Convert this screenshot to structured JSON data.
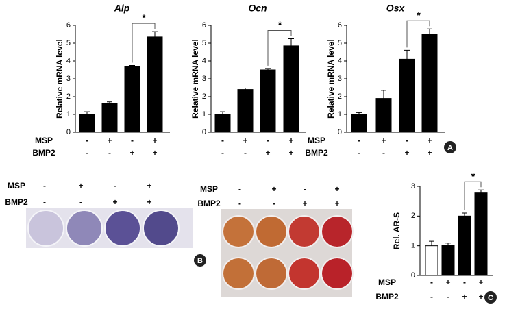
{
  "chart_data": [
    {
      "type": "bar",
      "title": "Alp",
      "y_label": "Relative mRNA level",
      "ylim": [
        0,
        6
      ],
      "yticks": [
        0,
        1,
        2,
        3,
        4,
        5,
        6
      ],
      "series": [
        {
          "name": null,
          "colors": [
            "#000000",
            "#000000",
            "#000000",
            "#000000"
          ],
          "values": [
            1.0,
            1.6,
            3.7,
            5.35
          ],
          "errors": [
            0.15,
            0.1,
            0.05,
            0.3
          ]
        }
      ],
      "conditions": [
        {
          "name": "MSP",
          "signs": [
            "-",
            "+",
            "-",
            "+"
          ]
        },
        {
          "name": "BMP2",
          "signs": [
            "-",
            "-",
            "+",
            "+"
          ]
        }
      ],
      "annotation": "*"
    },
    {
      "type": "bar",
      "title": "Ocn",
      "y_label": "Relative mRNA level",
      "ylim": [
        0,
        6
      ],
      "yticks": [
        0,
        1,
        2,
        3,
        4,
        5,
        6
      ],
      "series": [
        {
          "name": null,
          "colors": [
            "#000000",
            "#000000",
            "#000000",
            "#000000"
          ],
          "values": [
            1.0,
            2.4,
            3.5,
            4.85
          ],
          "errors": [
            0.15,
            0.08,
            0.08,
            0.4
          ]
        }
      ],
      "conditions": [
        {
          "signs": [
            "-",
            "+",
            "-",
            "+"
          ]
        },
        {
          "signs": [
            "-",
            "-",
            "+",
            "+"
          ]
        }
      ],
      "annotation": "*"
    },
    {
      "type": "bar",
      "title": "Osx",
      "y_label": "Relative mRNA level",
      "ylim": [
        0,
        6
      ],
      "yticks": [
        0,
        1,
        2,
        3,
        4,
        5,
        6
      ],
      "series": [
        {
          "name": null,
          "colors": [
            "#000000",
            "#000000",
            "#000000",
            "#000000"
          ],
          "values": [
            1.0,
            1.9,
            4.1,
            5.5
          ],
          "errors": [
            0.1,
            0.45,
            0.5,
            0.3
          ]
        }
      ],
      "conditions": [
        {
          "name": "MSP",
          "signs": [
            "-",
            "+",
            "-",
            "+"
          ]
        },
        {
          "name": "BMP2",
          "signs": [
            "-",
            "-",
            "+",
            "+"
          ]
        }
      ],
      "annotation": "*"
    },
    {
      "type": "bar",
      "y_label": "Rel. AR-S",
      "ylim": [
        0,
        3
      ],
      "yticks": [
        0,
        1,
        2,
        3
      ],
      "series": [
        {
          "name": null,
          "colors": [
            "#ffffff",
            "#000000",
            "#000000",
            "#000000"
          ],
          "values": [
            1.0,
            1.02,
            2.0,
            2.8
          ],
          "errors": [
            0.15,
            0.07,
            0.1,
            0.08
          ]
        }
      ],
      "conditions": [
        {
          "name": "MSP",
          "signs": [
            "-",
            "+",
            "-",
            "+"
          ]
        },
        {
          "name": "BMP2",
          "signs": [
            "-",
            "-",
            "+",
            "+"
          ]
        }
      ],
      "annotation": "*"
    }
  ],
  "plates": [
    {
      "conditions": [
        {
          "name": "MSP",
          "signs": [
            "-",
            "+",
            "-",
            "+"
          ]
        },
        {
          "name": "BMP2",
          "signs": [
            "-",
            "-",
            "+",
            "+"
          ]
        }
      ]
    },
    {
      "conditions": [
        {
          "name": "MSP",
          "signs": [
            "-",
            "+",
            "-",
            "+"
          ]
        },
        {
          "name": "BMP2",
          "signs": [
            "-",
            "-",
            "+",
            "+"
          ]
        }
      ]
    }
  ],
  "panel_labels": [
    "A",
    "B",
    "C"
  ]
}
